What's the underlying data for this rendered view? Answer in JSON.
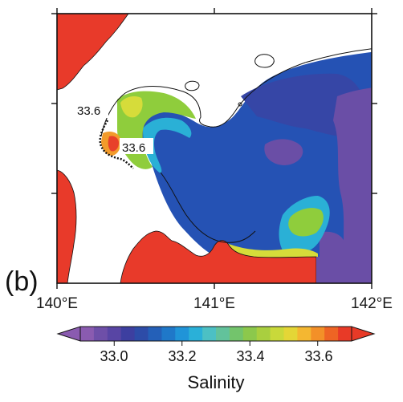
{
  "panel_label": "(b)",
  "map": {
    "x_ticks": [
      "140°E",
      "141°E",
      "142°E"
    ],
    "contour_labels": [
      "33.6",
      "33.6"
    ],
    "colors": {
      "land": "#e83a2a",
      "coast": "#111111",
      "sea_high": "#e8402a",
      "sea_orange": "#f29b2b",
      "sea_yellow": "#d6dc3a",
      "sea_green": "#8fcd3c",
      "sea_teal": "#2ab0d6",
      "sea_blue": "#2552b4",
      "sea_indigo": "#3646a6",
      "sea_purple": "#6a4ea6"
    }
  },
  "colorbar": {
    "title": "Salinity",
    "tick_labels": [
      "33.0",
      "33.2",
      "33.4",
      "33.6"
    ],
    "segments": [
      "#8a5bb0",
      "#6e4fa8",
      "#5845a4",
      "#3d3fa0",
      "#2d4ca8",
      "#2460b8",
      "#1f78c9",
      "#2094d8",
      "#2ab0d8",
      "#4cc0c4",
      "#62c29b",
      "#73c46c",
      "#8cc84c",
      "#a9cf3f",
      "#c9d93a",
      "#e4d636",
      "#f4b731",
      "#f39028",
      "#ee6424",
      "#e83a27"
    ],
    "range": [
      32.9,
      33.7
    ]
  }
}
